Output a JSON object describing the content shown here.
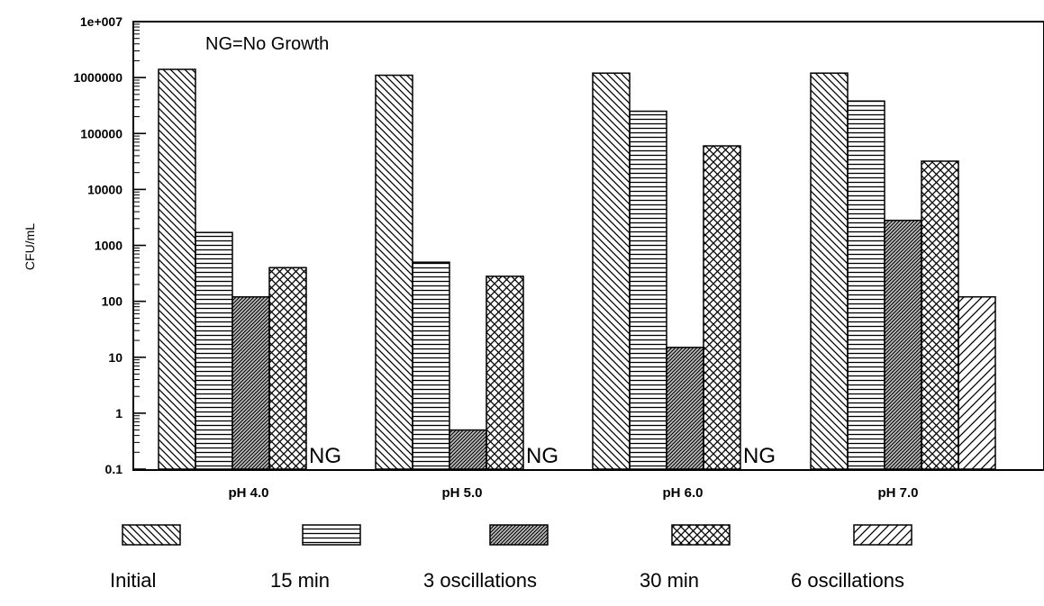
{
  "chart_data": {
    "type": "bar",
    "title": "",
    "xlabel": "",
    "ylabel": "CFU/mL",
    "yscale": "log",
    "ylim": [
      0.1,
      10000000
    ],
    "y_ticks": [
      0.1,
      1,
      10,
      100,
      1000,
      10000,
      100000,
      1000000,
      10000000
    ],
    "y_tick_labels": [
      "0.1",
      "1",
      "10",
      "100",
      "1000",
      "10000",
      "100000",
      "1000000",
      "1e+007"
    ],
    "categories": [
      "pH 4.0",
      "pH 5.0",
      "pH 6.0",
      "pH 7.0"
    ],
    "annotation": "NG=No Growth",
    "ng_label": "NG",
    "grid": false,
    "legend_position": "bottom",
    "series": [
      {
        "name": "Initial",
        "pattern": "diag-back",
        "values": [
          1400000,
          1100000,
          1200000,
          1200000
        ]
      },
      {
        "name": "15 min",
        "pattern": "horizontal",
        "values": [
          1700,
          500,
          250000,
          380000
        ]
      },
      {
        "name": "3 oscillations",
        "pattern": "dense-diag",
        "values": [
          120,
          0.5,
          15,
          2800
        ]
      },
      {
        "name": "30 min",
        "pattern": "crosshatch",
        "values": [
          400,
          280,
          60000,
          32000
        ]
      },
      {
        "name": "6 oscillations",
        "pattern": "diag-forward",
        "values": [
          null,
          null,
          null,
          120
        ]
      }
    ]
  }
}
